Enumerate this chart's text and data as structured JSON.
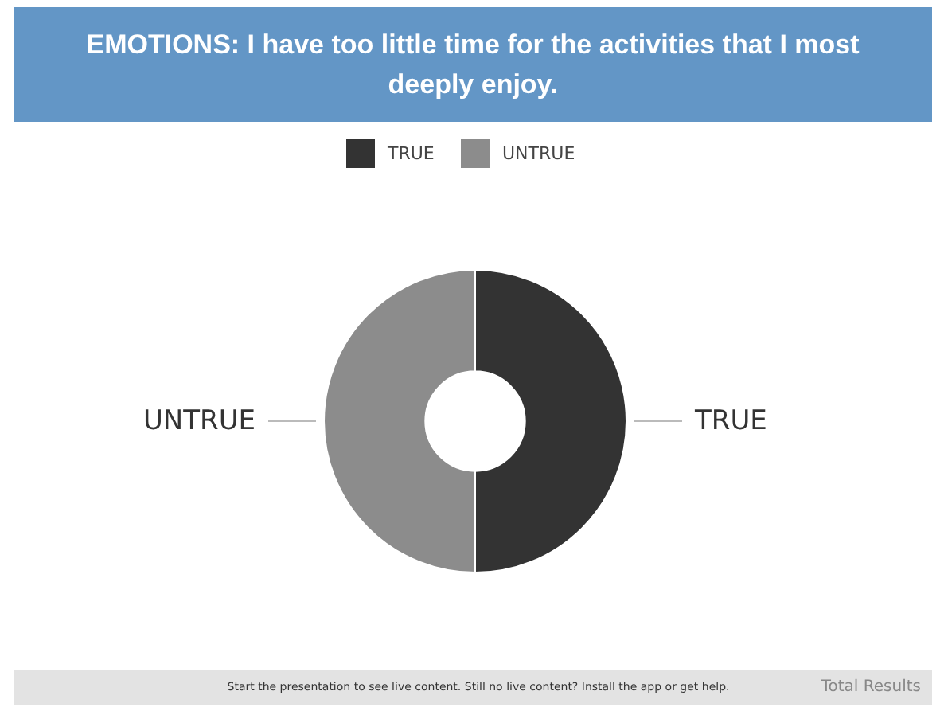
{
  "chart_data": {
    "type": "donut",
    "title": "EMOTIONS: I have too little time for the activities that I most deeply enjoy.",
    "categories": [
      "TRUE",
      "UNTRUE"
    ],
    "values": [
      50,
      50
    ],
    "colors": [
      "#333333",
      "#8c8c8c"
    ],
    "legend": "top",
    "annotations": [
      "Start the presentation to see live content. Still no live content? Install the app or get help.",
      "Total Results"
    ]
  }
}
